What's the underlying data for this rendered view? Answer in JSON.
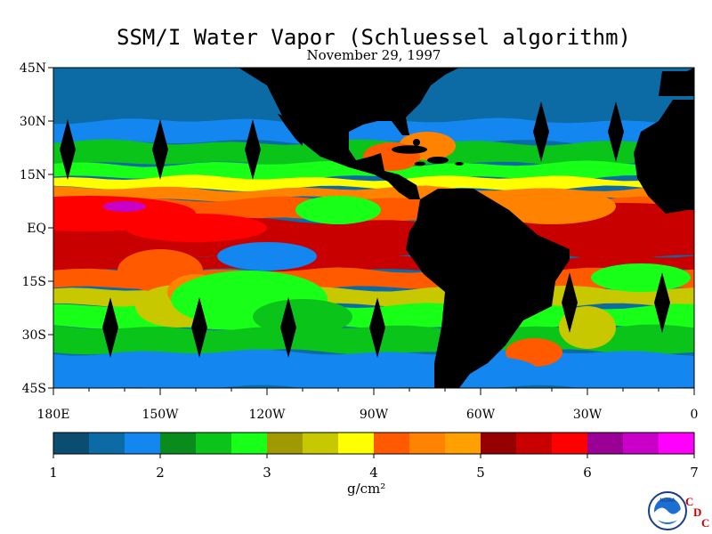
{
  "title": "SSM/I Water Vapor (Schluessel algorithm)",
  "date": "November 29, 1997",
  "lat_labels": [
    "45N",
    "30N",
    "15N",
    "EQ",
    "15S",
    "30S",
    "45S"
  ],
  "lon_labels": [
    "180E",
    "150W",
    "120W",
    "90W",
    "60W",
    "30W",
    "0"
  ],
  "colorbar": {
    "colors": [
      "#0a4d70",
      "#0c6aa5",
      "#1486f0",
      "#0a8c1c",
      "#0ac41a",
      "#18ff18",
      "#a09a00",
      "#c8c800",
      "#ffff00",
      "#ff5a00",
      "#ff8200",
      "#ffa000",
      "#960000",
      "#c80000",
      "#ff0000",
      "#9a0096",
      "#c800c8",
      "#ff00ff"
    ],
    "tick_labels": [
      "1",
      "2",
      "3",
      "4",
      "5",
      "6",
      "7"
    ],
    "units": "g/cm²"
  },
  "logo_text": "NOAA",
  "cdc_letters": [
    "C",
    "D",
    "C"
  ],
  "bands": [
    {
      "lat": 40,
      "color": "#0c6aa5"
    },
    {
      "lat": 30,
      "color": "#1486f0"
    },
    {
      "lat": 24,
      "color": "#0ac41a"
    },
    {
      "lat": 18,
      "color": "#18ff18"
    },
    {
      "lat": 14,
      "color": "#ffff00"
    },
    {
      "lat": 11,
      "color": "#ff8200"
    },
    {
      "lat": 8,
      "color": "#ff5a00"
    },
    {
      "lat": 2,
      "color": "#c80000"
    },
    {
      "lat": -8,
      "color": "#c80000"
    },
    {
      "lat": -12,
      "color": "#ff5a00"
    },
    {
      "lat": -17,
      "color": "#c8c800"
    },
    {
      "lat": -22,
      "color": "#18ff18"
    },
    {
      "lat": -28,
      "color": "#0ac41a"
    },
    {
      "lat": -35,
      "color": "#1486f0"
    },
    {
      "lat": -45,
      "color": "#0c6aa5"
    }
  ],
  "markers_lonlat": [
    [
      -176,
      22
    ],
    [
      -150,
      22
    ],
    [
      -124,
      22
    ],
    [
      -43,
      27
    ],
    [
      -22,
      27
    ],
    [
      -164,
      -28
    ],
    [
      -139,
      -28
    ],
    [
      -114,
      -28
    ],
    [
      -89,
      -28
    ],
    [
      -35,
      -21
    ],
    [
      -9,
      -21
    ]
  ]
}
